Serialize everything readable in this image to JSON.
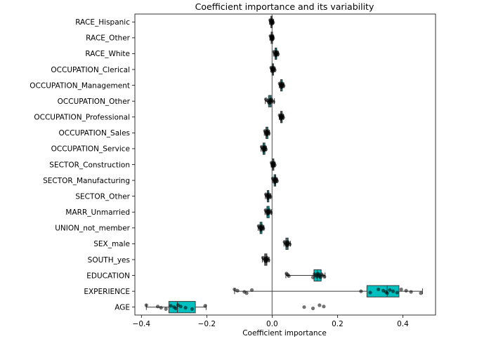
{
  "chart_data": {
    "type": "box",
    "title": "Coefficient importance and its variability",
    "xlabel": "Coefficient importance",
    "ylabel": "",
    "xlim": [
      -0.42,
      0.5
    ],
    "xticks": [
      -0.4,
      -0.2,
      0.0,
      0.2,
      0.4
    ],
    "xtick_labels": [
      "−0.4",
      "−0.2",
      "0.0",
      "0.2",
      "0.4"
    ],
    "zero_line": 0.0,
    "box_color": "#00bfbf",
    "point_color": "#000000",
    "categories": [
      "RACE_Hispanic",
      "RACE_Other",
      "RACE_White",
      "OCCUPATION_Clerical",
      "OCCUPATION_Management",
      "OCCUPATION_Other",
      "OCCUPATION_Professional",
      "OCCUPATION_Sales",
      "OCCUPATION_Service",
      "SECTOR_Construction",
      "SECTOR_Manufacturing",
      "SECTOR_Other",
      "MARR_Unmarried",
      "UNION_not_member",
      "SEX_male",
      "SOUTH_yes",
      "EDUCATION",
      "EXPERIENCE",
      "AGE"
    ],
    "boxes": [
      {
        "name": "RACE_Hispanic",
        "whislo": -0.008,
        "q1": -0.004,
        "med": -0.002,
        "q3": 0.0,
        "whishi": 0.004,
        "fliers": []
      },
      {
        "name": "RACE_Other",
        "whislo": -0.007,
        "q1": -0.003,
        "med": -0.001,
        "q3": 0.001,
        "whishi": 0.004,
        "fliers": []
      },
      {
        "name": "RACE_White",
        "whislo": 0.004,
        "q1": 0.009,
        "med": 0.012,
        "q3": 0.014,
        "whishi": 0.019,
        "fliers": []
      },
      {
        "name": "OCCUPATION_Clerical",
        "whislo": -0.004,
        "q1": 0.0,
        "med": 0.002,
        "q3": 0.004,
        "whishi": 0.009,
        "fliers": []
      },
      {
        "name": "OCCUPATION_Management",
        "whislo": 0.022,
        "q1": 0.026,
        "med": 0.029,
        "q3": 0.031,
        "whishi": 0.036,
        "fliers": []
      },
      {
        "name": "OCCUPATION_Other",
        "whislo": -0.021,
        "q1": -0.011,
        "med": -0.007,
        "q3": -0.003,
        "whishi": 0.007,
        "fliers": []
      },
      {
        "name": "OCCUPATION_Professional",
        "whislo": 0.022,
        "q1": 0.026,
        "med": 0.028,
        "q3": 0.031,
        "whishi": 0.035,
        "fliers": []
      },
      {
        "name": "OCCUPATION_Sales",
        "whislo": -0.024,
        "q1": -0.019,
        "med": -0.016,
        "q3": -0.013,
        "whishi": -0.008,
        "fliers": []
      },
      {
        "name": "OCCUPATION_Service",
        "whislo": -0.034,
        "q1": -0.028,
        "med": -0.025,
        "q3": -0.022,
        "whishi": -0.018,
        "fliers": []
      },
      {
        "name": "SECTOR_Construction",
        "whislo": -0.003,
        "q1": 0.001,
        "med": 0.003,
        "q3": 0.005,
        "whishi": 0.009,
        "fliers": []
      },
      {
        "name": "SECTOR_Manufacturing",
        "whislo": 0.001,
        "q1": 0.006,
        "med": 0.009,
        "q3": 0.011,
        "whishi": 0.016,
        "fliers": []
      },
      {
        "name": "SECTOR_Other",
        "whislo": -0.021,
        "q1": -0.015,
        "med": -0.013,
        "q3": -0.01,
        "whishi": -0.004,
        "fliers": []
      },
      {
        "name": "MARR_Unmarried",
        "whislo": -0.022,
        "q1": -0.016,
        "med": -0.013,
        "q3": -0.009,
        "whishi": -0.002,
        "fliers": []
      },
      {
        "name": "UNION_not_member",
        "whislo": -0.043,
        "q1": -0.037,
        "med": -0.034,
        "q3": -0.031,
        "whishi": -0.025,
        "fliers": []
      },
      {
        "name": "SEX_male",
        "whislo": 0.036,
        "q1": 0.042,
        "med": 0.046,
        "q3": 0.049,
        "whishi": 0.056,
        "fliers": []
      },
      {
        "name": "SOUTH_yes",
        "whislo": -0.03,
        "q1": -0.023,
        "med": -0.019,
        "q3": -0.016,
        "whishi": -0.009,
        "fliers": []
      },
      {
        "name": "EDUCATION",
        "whislo": 0.042,
        "q1": 0.128,
        "med": 0.138,
        "q3": 0.15,
        "whishi": 0.162,
        "fliers": [
          0.044,
          0.048,
          0.051
        ]
      },
      {
        "name": "EXPERIENCE",
        "whislo": -0.115,
        "q1": 0.29,
        "med": 0.352,
        "q3": 0.388,
        "whishi": 0.46,
        "fliers": [
          -0.115,
          -0.106,
          -0.085,
          -0.078,
          -0.062,
          0.272
        ]
      },
      {
        "name": "AGE",
        "whislo": -0.385,
        "q1": -0.316,
        "med": -0.29,
        "q3": -0.235,
        "whishi": -0.202,
        "fliers": [
          0.098,
          0.125,
          0.145,
          0.158
        ]
      }
    ],
    "points": [
      [
        -0.006,
        -0.004,
        -0.003,
        -0.002,
        -0.002,
        -0.001,
        0.0,
        0.0,
        0.001,
        0.003
      ],
      [
        -0.005,
        -0.003,
        -0.002,
        -0.001,
        -0.001,
        0.0,
        0.0,
        0.001,
        0.002,
        0.003
      ],
      [
        0.006,
        0.009,
        0.01,
        0.011,
        0.012,
        0.012,
        0.013,
        0.014,
        0.016,
        0.018
      ],
      [
        -0.003,
        -0.001,
        0.0,
        0.001,
        0.002,
        0.002,
        0.003,
        0.004,
        0.006,
        0.008
      ],
      [
        0.023,
        0.025,
        0.027,
        0.028,
        0.029,
        0.029,
        0.03,
        0.031,
        0.033,
        0.035
      ],
      [
        -0.019,
        -0.014,
        -0.011,
        -0.009,
        -0.007,
        -0.006,
        -0.005,
        -0.003,
        -0.001,
        0.004
      ],
      [
        0.023,
        0.025,
        0.026,
        0.027,
        0.028,
        0.028,
        0.029,
        0.031,
        0.032,
        0.034
      ],
      [
        -0.022,
        -0.02,
        -0.018,
        -0.017,
        -0.016,
        -0.016,
        -0.015,
        -0.013,
        -0.012,
        -0.01
      ],
      [
        -0.032,
        -0.029,
        -0.027,
        -0.026,
        -0.025,
        -0.025,
        -0.024,
        -0.022,
        -0.021,
        -0.019
      ],
      [
        -0.002,
        0.0,
        0.001,
        0.002,
        0.003,
        0.003,
        0.004,
        0.005,
        0.006,
        0.008
      ],
      [
        0.002,
        0.005,
        0.007,
        0.008,
        0.009,
        0.009,
        0.01,
        0.011,
        0.013,
        0.015
      ],
      [
        -0.019,
        -0.016,
        -0.014,
        -0.013,
        -0.013,
        -0.012,
        -0.011,
        -0.01,
        -0.008,
        -0.005
      ],
      [
        -0.02,
        -0.017,
        -0.015,
        -0.014,
        -0.013,
        -0.012,
        -0.011,
        -0.009,
        -0.007,
        -0.004
      ],
      [
        -0.041,
        -0.038,
        -0.036,
        -0.035,
        -0.034,
        -0.033,
        -0.032,
        -0.031,
        -0.029,
        -0.027
      ],
      [
        0.038,
        0.041,
        0.043,
        0.045,
        0.046,
        0.046,
        0.047,
        0.048,
        0.05,
        0.054
      ],
      [
        -0.028,
        -0.024,
        -0.022,
        -0.02,
        -0.019,
        -0.018,
        -0.017,
        -0.016,
        -0.014,
        -0.011
      ],
      [
        0.044,
        0.048,
        0.051,
        0.125,
        0.13,
        0.134,
        0.137,
        0.14,
        0.142,
        0.145,
        0.148,
        0.151,
        0.155,
        0.16
      ],
      [
        -0.115,
        -0.106,
        -0.085,
        -0.078,
        -0.062,
        0.272,
        0.3,
        0.325,
        0.34,
        0.348,
        0.352,
        0.36,
        0.37,
        0.382,
        0.395,
        0.41,
        0.425,
        0.455
      ],
      [
        -0.385,
        -0.35,
        -0.34,
        -0.325,
        -0.31,
        -0.3,
        -0.295,
        -0.288,
        -0.28,
        -0.265,
        -0.245,
        -0.205,
        0.098,
        0.125,
        0.145,
        0.158
      ]
    ]
  }
}
